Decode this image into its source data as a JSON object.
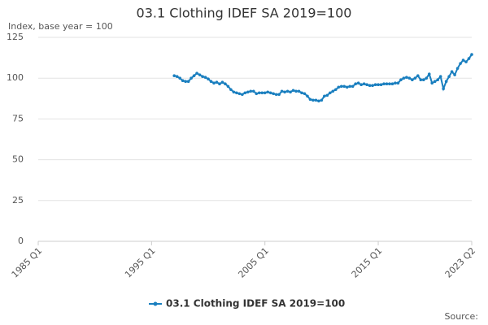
{
  "chart_data": {
    "type": "line",
    "title": "03.1 Clothing IDEF SA 2019=100",
    "subtitle": "Index, base year = 100",
    "source": "Source:",
    "categories": [
      "1985 Q1",
      null,
      null,
      null,
      null,
      null,
      null,
      null,
      null,
      null,
      null,
      null,
      null,
      null,
      null,
      null,
      null,
      null,
      null,
      null,
      null,
      null,
      null,
      null,
      null,
      null,
      null,
      null,
      null,
      null,
      null,
      null,
      null,
      null,
      null,
      null,
      null,
      null,
      null,
      null,
      "1995 Q1",
      null,
      null,
      null,
      null,
      null,
      null,
      null,
      null,
      null,
      null,
      null,
      null,
      null,
      null,
      null,
      null,
      null,
      null,
      null,
      null,
      null,
      null,
      null,
      null,
      null,
      null,
      null,
      null,
      null,
      null,
      null,
      null,
      null,
      null,
      null,
      null,
      null,
      null,
      null,
      "2005 Q1",
      null,
      null,
      null,
      null,
      null,
      null,
      null,
      null,
      null,
      null,
      null,
      null,
      null,
      null,
      null,
      null,
      null,
      null,
      null,
      null,
      null,
      null,
      null,
      null,
      null,
      null,
      null,
      null,
      null,
      null,
      null,
      null,
      null,
      null,
      null,
      null,
      null,
      null,
      null,
      "2015 Q1",
      null,
      null,
      null,
      null,
      null,
      null,
      null,
      null,
      null,
      null,
      null,
      null,
      null,
      null,
      null,
      null,
      null,
      null,
      null,
      null,
      null,
      null,
      null,
      null,
      null,
      null,
      null,
      null,
      null,
      null,
      null,
      null,
      "2023 Q2"
    ],
    "series": [
      {
        "name": "03.1 Clothing IDEF SA 2019=100",
        "color": "#1a7fbf",
        "values": [
          null,
          null,
          null,
          null,
          null,
          null,
          null,
          null,
          null,
          null,
          null,
          null,
          null,
          null,
          null,
          null,
          null,
          null,
          null,
          null,
          null,
          null,
          null,
          null,
          null,
          null,
          null,
          null,
          null,
          null,
          null,
          null,
          null,
          null,
          null,
          null,
          null,
          null,
          null,
          null,
          null,
          null,
          null,
          null,
          null,
          null,
          null,
          null,
          101.5,
          101,
          100,
          98.5,
          98,
          98,
          100,
          101.5,
          103,
          102,
          101,
          100.5,
          99.5,
          98,
          97,
          97.5,
          96.5,
          97.5,
          96.5,
          95,
          93,
          91.5,
          91,
          90.5,
          90,
          91,
          91.5,
          92,
          92,
          90.5,
          91,
          91,
          91,
          91.5,
          91,
          90.5,
          90,
          90,
          92,
          91.5,
          92,
          91.5,
          92.5,
          92,
          92,
          91,
          90.5,
          89,
          87,
          86.5,
          86.5,
          86,
          86.5,
          89,
          89.5,
          91,
          92,
          93,
          94.5,
          95,
          95,
          94.5,
          95,
          95,
          96.5,
          97,
          96,
          96.5,
          96,
          95.5,
          95.5,
          96,
          96,
          96,
          96.5,
          96.5,
          96.5,
          96.5,
          97,
          97,
          99,
          100,
          100.5,
          100,
          99,
          100,
          101.5,
          99,
          99,
          100,
          102.5,
          97,
          98,
          99,
          101,
          93.5,
          98,
          101,
          104,
          102,
          106,
          109,
          111,
          110,
          112,
          114.5
        ]
      }
    ],
    "ylim": [
      0,
      125
    ],
    "yticks": [
      0,
      25,
      50,
      75,
      100,
      125
    ],
    "grid": true
  }
}
